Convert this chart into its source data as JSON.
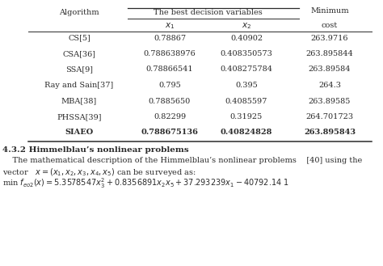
{
  "header_col1": "Algorithm",
  "header_span": "The best decision variables",
  "header_min1": "Minimum",
  "header_min2": "cost",
  "header_x1": "$x_1$",
  "header_x2": "$x_2$",
  "rows": [
    [
      "CS[5]",
      "0.78867",
      "0.40902",
      "263.9716",
      false
    ],
    [
      "CSA[36]",
      "0.788638976",
      "0.408350573",
      "263.895844",
      false
    ],
    [
      "SSA[9]",
      "0.78866541",
      "0.408275784",
      "263.89584",
      false
    ],
    [
      "Ray and Sain[37]",
      "0.795",
      "0.395",
      "264.3",
      false
    ],
    [
      "MBA[38]",
      "0.7885650",
      "0.4085597",
      "263.89585",
      false
    ],
    [
      "PHSSA[39]",
      "0.82299",
      "0.31925",
      "264.701723",
      false
    ],
    [
      "SIAEO",
      "0.788675136",
      "0.40824828",
      "263.895843",
      true
    ]
  ],
  "section_title": "4.3.2 Himmelblau’s nonlinear problems",
  "para_line": "    The mathematical description of the Himmelblau’s nonlinear problems    [40] using the",
  "vec_line": "vector   $x = (x_1, x_2, x_3, x_4, x_5)$ can be surveyed as:",
  "form_line": "min $f_{eo2}(x) = 5.3578547x_3^2 + 0.8356891x_2x_5 + 37.293239x_1 - 40792.14\\ 1$",
  "bg_color": "#ffffff",
  "text_color": "#2a2a2a",
  "fs_table": 7.0,
  "fs_text": 7.0,
  "fs_section": 7.5
}
